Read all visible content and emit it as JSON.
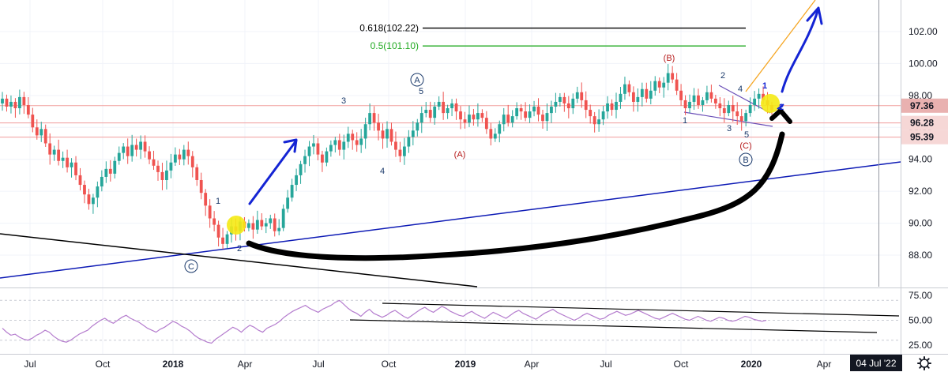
{
  "chart_data": [
    {
      "type": "candlestick",
      "title": "",
      "ylim": [
        86.2,
        104.3
      ],
      "y_axis": {
        "ticks": [
          88.0,
          90.0,
          92.0,
          94.0,
          96.0,
          98.0,
          100.0,
          102.0
        ],
        "tick_labels": [
          "88.00",
          "90.00",
          "92.00",
          "94.00",
          "96.00",
          "98.00",
          "100.00",
          "102.00"
        ]
      },
      "x_axis": {
        "labels": [
          "Jul",
          "Oct",
          "2018",
          "Apr",
          "Jul",
          "Oct",
          "2019",
          "Apr",
          "Jul",
          "Oct",
          "2020",
          "Apr"
        ],
        "bold": [
          false,
          false,
          true,
          false,
          false,
          false,
          true,
          false,
          false,
          false,
          true,
          false
        ]
      },
      "price_tags": [
        {
          "value": 97.36,
          "label": "97.36",
          "bg": "#e9b1b0"
        },
        {
          "value": 96.28,
          "label": "96.28",
          "bg": "#f6d7d6"
        },
        {
          "value": 95.39,
          "label": "95.39",
          "bg": "#f6d7d6"
        }
      ],
      "horizontal_levels": [
        97.36,
        96.28,
        95.39
      ],
      "fib_levels": [
        {
          "label": "0.618(102.22)",
          "value": 102.22,
          "color": "#000000"
        },
        {
          "label": "0.5(101.10)",
          "value": 101.1,
          "color": "#22aa22"
        }
      ],
      "candles_weekly_close": [
        97.8,
        97.3,
        97.6,
        97.2,
        97.9,
        97.4,
        96.8,
        96.0,
        95.5,
        95.9,
        95.0,
        94.3,
        94.6,
        93.9,
        94.1,
        93.5,
        93.8,
        93.0,
        92.4,
        91.8,
        91.2,
        91.6,
        92.3,
        92.9,
        93.4,
        93.1,
        93.9,
        94.4,
        94.8,
        94.2,
        94.9,
        94.6,
        95.1,
        94.5,
        94.0,
        93.6,
        93.2,
        92.7,
        93.3,
        93.8,
        94.3,
        94.0,
        94.6,
        94.2,
        93.5,
        92.7,
        91.9,
        91.1,
        90.3,
        89.9,
        89.1,
        88.7,
        89.3,
        89.8,
        89.5,
        90.1,
        89.7,
        90.0,
        89.6,
        90.2,
        89.8,
        90.0,
        90.3,
        89.5,
        89.7,
        90.9,
        91.6,
        92.4,
        93.0,
        93.7,
        94.2,
        94.8,
        95.0,
        94.3,
        93.8,
        94.5,
        94.9,
        95.2,
        94.6,
        95.1,
        95.6,
        95.2,
        94.9,
        95.3,
        96.2,
        96.9,
        96.3,
        95.8,
        95.3,
        95.9,
        95.1,
        94.6,
        94.2,
        94.8,
        95.4,
        95.8,
        96.3,
        96.9,
        97.1,
        96.6,
        97.3,
        97.6,
        96.9,
        97.2,
        97.5,
        97.0,
        96.5,
        96.3,
        96.8,
        96.5,
        96.9,
        96.6,
        95.9,
        95.3,
        95.6,
        96.2,
        96.8,
        96.3,
        96.7,
        97.2,
        97.0,
        96.6,
        97.0,
        97.3,
        96.8,
        96.4,
        96.9,
        97.3,
        97.6,
        97.9,
        97.5,
        97.2,
        97.8,
        98.2,
        97.7,
        97.1,
        96.7,
        96.2,
        96.5,
        97.0,
        97.5,
        97.1,
        97.6,
        98.1,
        98.7,
        98.2,
        97.6,
        97.9,
        98.4,
        97.8,
        98.3,
        98.9,
        98.5,
        98.8,
        99.4,
        99.0,
        98.3,
        97.7,
        97.2,
        97.6,
        98.0,
        97.4,
        97.7,
        98.2,
        97.8,
        97.5,
        97.2,
        96.9,
        97.4,
        97.0,
        96.7,
        96.4,
        96.9,
        97.4,
        97.8,
        98.1,
        97.7,
        97.4,
        97.1
      ]
    },
    {
      "type": "line",
      "title": "",
      "name": "RSI",
      "ylim": [
        22,
        80
      ],
      "y_axis": {
        "ticks": [
          25,
          50,
          75
        ],
        "tick_labels": [
          "25.00",
          "50.00",
          "75.00"
        ]
      },
      "levels": [
        70,
        50,
        30
      ],
      "values": [
        42,
        38,
        35,
        36,
        33,
        31,
        30,
        32,
        35,
        37,
        40,
        38,
        34,
        31,
        29,
        28,
        30,
        33,
        36,
        38,
        40,
        44,
        47,
        50,
        52,
        49,
        47,
        50,
        53,
        55,
        52,
        50,
        48,
        45,
        42,
        40,
        38,
        41,
        43,
        46,
        49,
        47,
        44,
        42,
        39,
        35,
        32,
        30,
        28,
        27,
        31,
        34,
        37,
        40,
        43,
        41,
        38,
        42,
        45,
        43,
        40,
        38,
        42,
        44,
        46,
        49,
        53,
        56,
        59,
        61,
        63,
        65,
        62,
        60,
        58,
        61,
        63,
        65,
        68,
        70,
        66,
        62,
        59,
        57,
        54,
        58,
        61,
        57,
        55,
        53,
        55,
        58,
        60,
        57,
        54,
        52,
        55,
        58,
        61,
        63,
        60,
        58,
        61,
        64,
        62,
        59,
        57,
        55,
        54,
        57,
        59,
        56,
        54,
        52,
        55,
        58,
        56,
        54,
        52,
        55,
        58,
        60,
        57,
        55,
        53,
        51,
        54,
        57,
        59,
        61,
        58,
        56,
        54,
        52,
        50,
        52,
        55,
        57,
        55,
        53,
        51,
        52,
        55,
        57,
        59,
        57,
        55,
        56,
        58,
        60,
        58,
        56,
        54,
        52,
        51,
        53,
        55,
        57,
        55,
        53,
        51,
        50,
        52,
        54,
        52,
        50,
        49,
        51,
        53,
        52,
        50,
        49,
        50,
        52,
        54,
        53,
        51,
        50,
        49,
        50
      ]
    }
  ],
  "wave_labels": {
    "circle_c": "C",
    "circle_a": "A",
    "circle_b": "B",
    "w1": "1",
    "w2": "2",
    "w3": "3",
    "w4": "4",
    "w5": "5",
    "wa": "(A)",
    "wb": "(B)",
    "wc": "(C)",
    "d1": "1",
    "d2": "2",
    "d3": "3",
    "d4": "4",
    "d5": "5",
    "n1": "1",
    "n2": "2"
  },
  "date_badge": "04 Jul '22",
  "settings_icon": "gear-icon",
  "colors": {
    "up": "#26a69a",
    "down": "#ef5350",
    "trendline_blue": "#0d1ab5",
    "trendline_black": "#000000",
    "arrow_blue": "#1424d4",
    "orange_projection": "#f5a623",
    "rsi_line": "#b57dce",
    "highlight": "#f5ea14",
    "wave_red": "#b71c1c",
    "wave_blue": "#1b3a6b"
  }
}
